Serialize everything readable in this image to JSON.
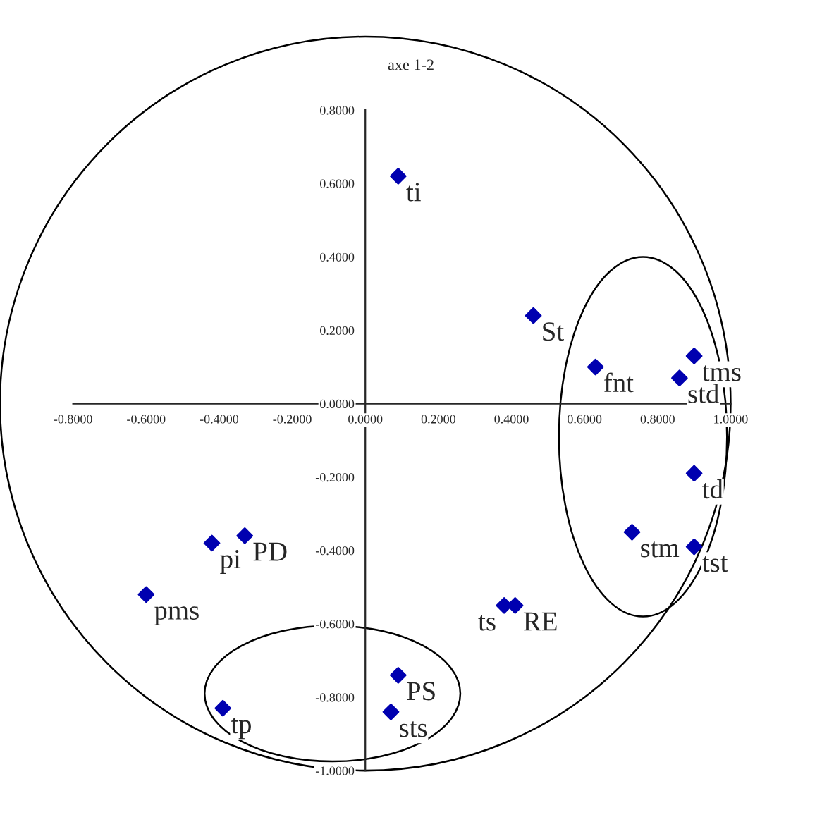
{
  "chart_data": {
    "type": "scatter",
    "title": "axe 1-2",
    "xlim": [
      -1.0,
      1.25
    ],
    "ylim": [
      -1.14,
      1.1
    ],
    "xticks": [
      {
        "value": -0.8,
        "label": "-0.8000"
      },
      {
        "value": -0.6,
        "label": "-0.6000"
      },
      {
        "value": -0.4,
        "label": "-0.4000"
      },
      {
        "value": -0.2,
        "label": "-0.2000"
      },
      {
        "value": 0.0,
        "label": "0.0000"
      },
      {
        "value": 0.2,
        "label": "0.2000"
      },
      {
        "value": 0.4,
        "label": "0.4000"
      },
      {
        "value": 0.6,
        "label": "0.6000"
      },
      {
        "value": 0.8,
        "label": "0.8000"
      },
      {
        "value": 1.0,
        "label": "1.0000"
      }
    ],
    "yticks": [
      {
        "value": -1.0,
        "label": "-1.0000"
      },
      {
        "value": -0.8,
        "label": "-0.8000"
      },
      {
        "value": -0.6,
        "label": "-0.6000"
      },
      {
        "value": -0.4,
        "label": "-0.4000"
      },
      {
        "value": -0.2,
        "label": "-0.2000"
      },
      {
        "value": 0.0,
        "label": "0.0000"
      },
      {
        "value": 0.2,
        "label": "0.2000"
      },
      {
        "value": 0.4,
        "label": "0.4000"
      },
      {
        "value": 0.6,
        "label": "0.6000"
      },
      {
        "value": 0.8,
        "label": "0.8000"
      }
    ],
    "grid": false,
    "legend": false,
    "marker": "diamond",
    "series": [
      {
        "name": "ti",
        "color": "#0000b0",
        "x": [
          0.09
        ],
        "values": [
          0.62
        ]
      },
      {
        "name": "St",
        "color": "#0000b0",
        "x": [
          0.46
        ],
        "values": [
          0.24
        ]
      },
      {
        "name": "fnt",
        "color": "#0000b0",
        "x": [
          0.63
        ],
        "values": [
          0.1
        ]
      },
      {
        "name": "tms",
        "color": "#0000b0",
        "x": [
          0.9
        ],
        "values": [
          0.13
        ]
      },
      {
        "name": "std",
        "color": "#0000b0",
        "x": [
          0.86
        ],
        "values": [
          0.07
        ]
      },
      {
        "name": "td",
        "color": "#0000b0",
        "x": [
          0.9
        ],
        "values": [
          -0.19
        ]
      },
      {
        "name": "stm",
        "color": "#0000b0",
        "x": [
          0.73
        ],
        "values": [
          -0.35
        ]
      },
      {
        "name": "tst",
        "color": "#0000b0",
        "x": [
          0.9
        ],
        "values": [
          -0.39
        ]
      },
      {
        "name": "ts",
        "color": "#0000b0",
        "x": [
          0.38
        ],
        "values": [
          -0.55
        ]
      },
      {
        "name": "RE",
        "color": "#0000b0",
        "x": [
          0.41
        ],
        "values": [
          -0.55
        ]
      },
      {
        "name": "PS",
        "color": "#0000b0",
        "x": [
          0.09
        ],
        "values": [
          -0.74
        ]
      },
      {
        "name": "sts",
        "color": "#0000b0",
        "x": [
          0.07
        ],
        "values": [
          -0.84
        ]
      },
      {
        "name": "tp",
        "color": "#0000b0",
        "x": [
          -0.39
        ],
        "values": [
          -0.83
        ]
      },
      {
        "name": "pms",
        "color": "#0000b0",
        "x": [
          -0.6
        ],
        "values": [
          -0.52
        ]
      },
      {
        "name": "pi",
        "color": "#0000b0",
        "x": [
          -0.42
        ],
        "values": [
          -0.38
        ]
      },
      {
        "name": "PD",
        "color": "#0000b0",
        "x": [
          -0.33
        ],
        "values": [
          -0.36
        ]
      }
    ]
  }
}
